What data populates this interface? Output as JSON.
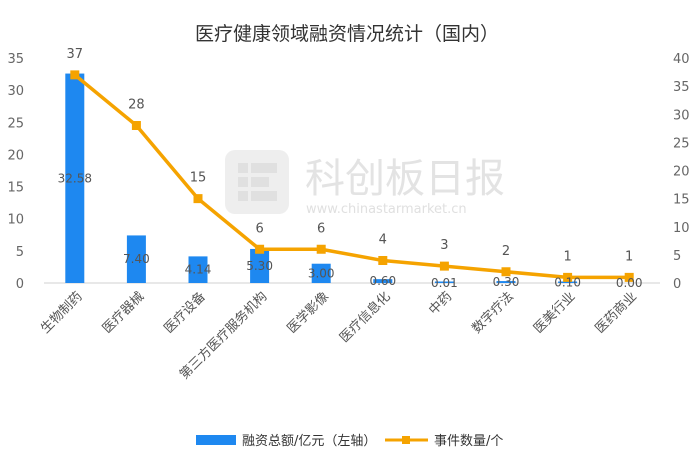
{
  "chart_data": {
    "type": "bar",
    "title": "医疗健康领域融资情况统计（国内）",
    "categories": [
      "生物制药",
      "医疗器械",
      "医疗设备",
      "第三方医疗服务机构",
      "医学影像",
      "医疗信息化",
      "中药",
      "数字疗法",
      "医美行业",
      "医药商业"
    ],
    "series": [
      {
        "name": "融资总额/亿元（左轴）",
        "type": "bar",
        "axis": "left",
        "color": "#1e88f0",
        "values": [
          32.58,
          7.4,
          4.14,
          5.3,
          3.0,
          0.6,
          0.01,
          0.3,
          0.1,
          0.0
        ],
        "labels": [
          "32.58",
          "7.40",
          "4.14",
          "5.30",
          "3.00",
          "0.60",
          "0.01",
          "0.30",
          "0.10",
          "0.00"
        ]
      },
      {
        "name": "事件数量/个",
        "type": "line",
        "axis": "right",
        "color": "#f5a300",
        "values": [
          37,
          28,
          15,
          6,
          6,
          4,
          3,
          2,
          1,
          1
        ],
        "labels": [
          "37",
          "28",
          "15",
          "6",
          "6",
          "4",
          "3",
          "2",
          "1",
          "1"
        ]
      }
    ],
    "ylim_left": [
      0,
      35
    ],
    "yticks_left": [
      "0",
      "5",
      "10",
      "15",
      "20",
      "25",
      "30",
      "35"
    ],
    "ylim_right": [
      0,
      40
    ],
    "yticks_right": [
      "0",
      "5",
      "10",
      "15",
      "20",
      "25",
      "30",
      "35",
      "40"
    ],
    "grid": false,
    "legend": "bottom"
  },
  "watermark": {
    "text": "科创板日报",
    "url": "www.chinastarmarket.cn"
  }
}
